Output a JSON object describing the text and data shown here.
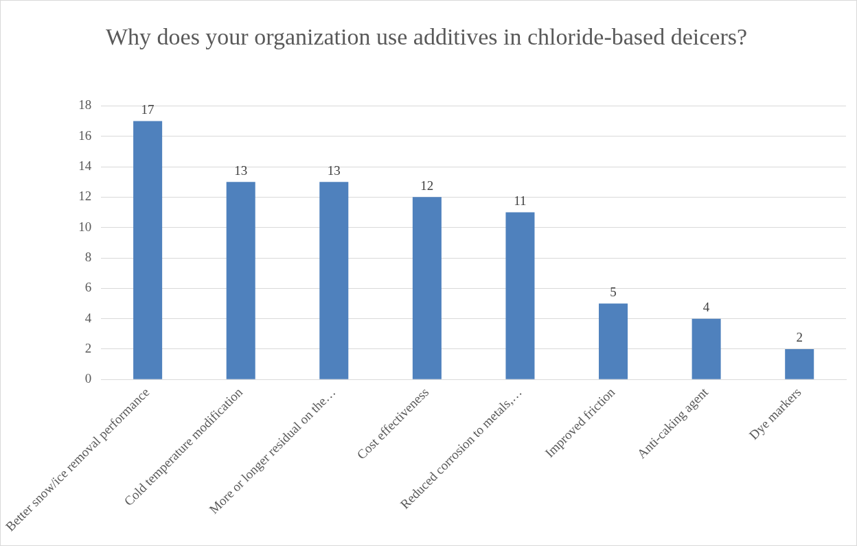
{
  "chart_data": {
    "type": "bar",
    "title": "Why does your organization use additives in chloride-based deicers?",
    "categories": [
      "Better snow/ice removal performance",
      "Cold temperature modification",
      "More or longer residual on the…",
      "Cost effectiveness",
      "Reduced corrosion to metals,…",
      "Improved friction",
      "Anti-caking agent",
      "Dye markers"
    ],
    "values": [
      17,
      13,
      13,
      12,
      11,
      5,
      4,
      2
    ],
    "color": "#4f81bd",
    "ylim": [
      0,
      18
    ],
    "yticks": [
      0,
      2,
      4,
      6,
      8,
      10,
      12,
      14,
      16,
      18
    ],
    "grid": "y",
    "data_labels": true,
    "legend": false
  }
}
